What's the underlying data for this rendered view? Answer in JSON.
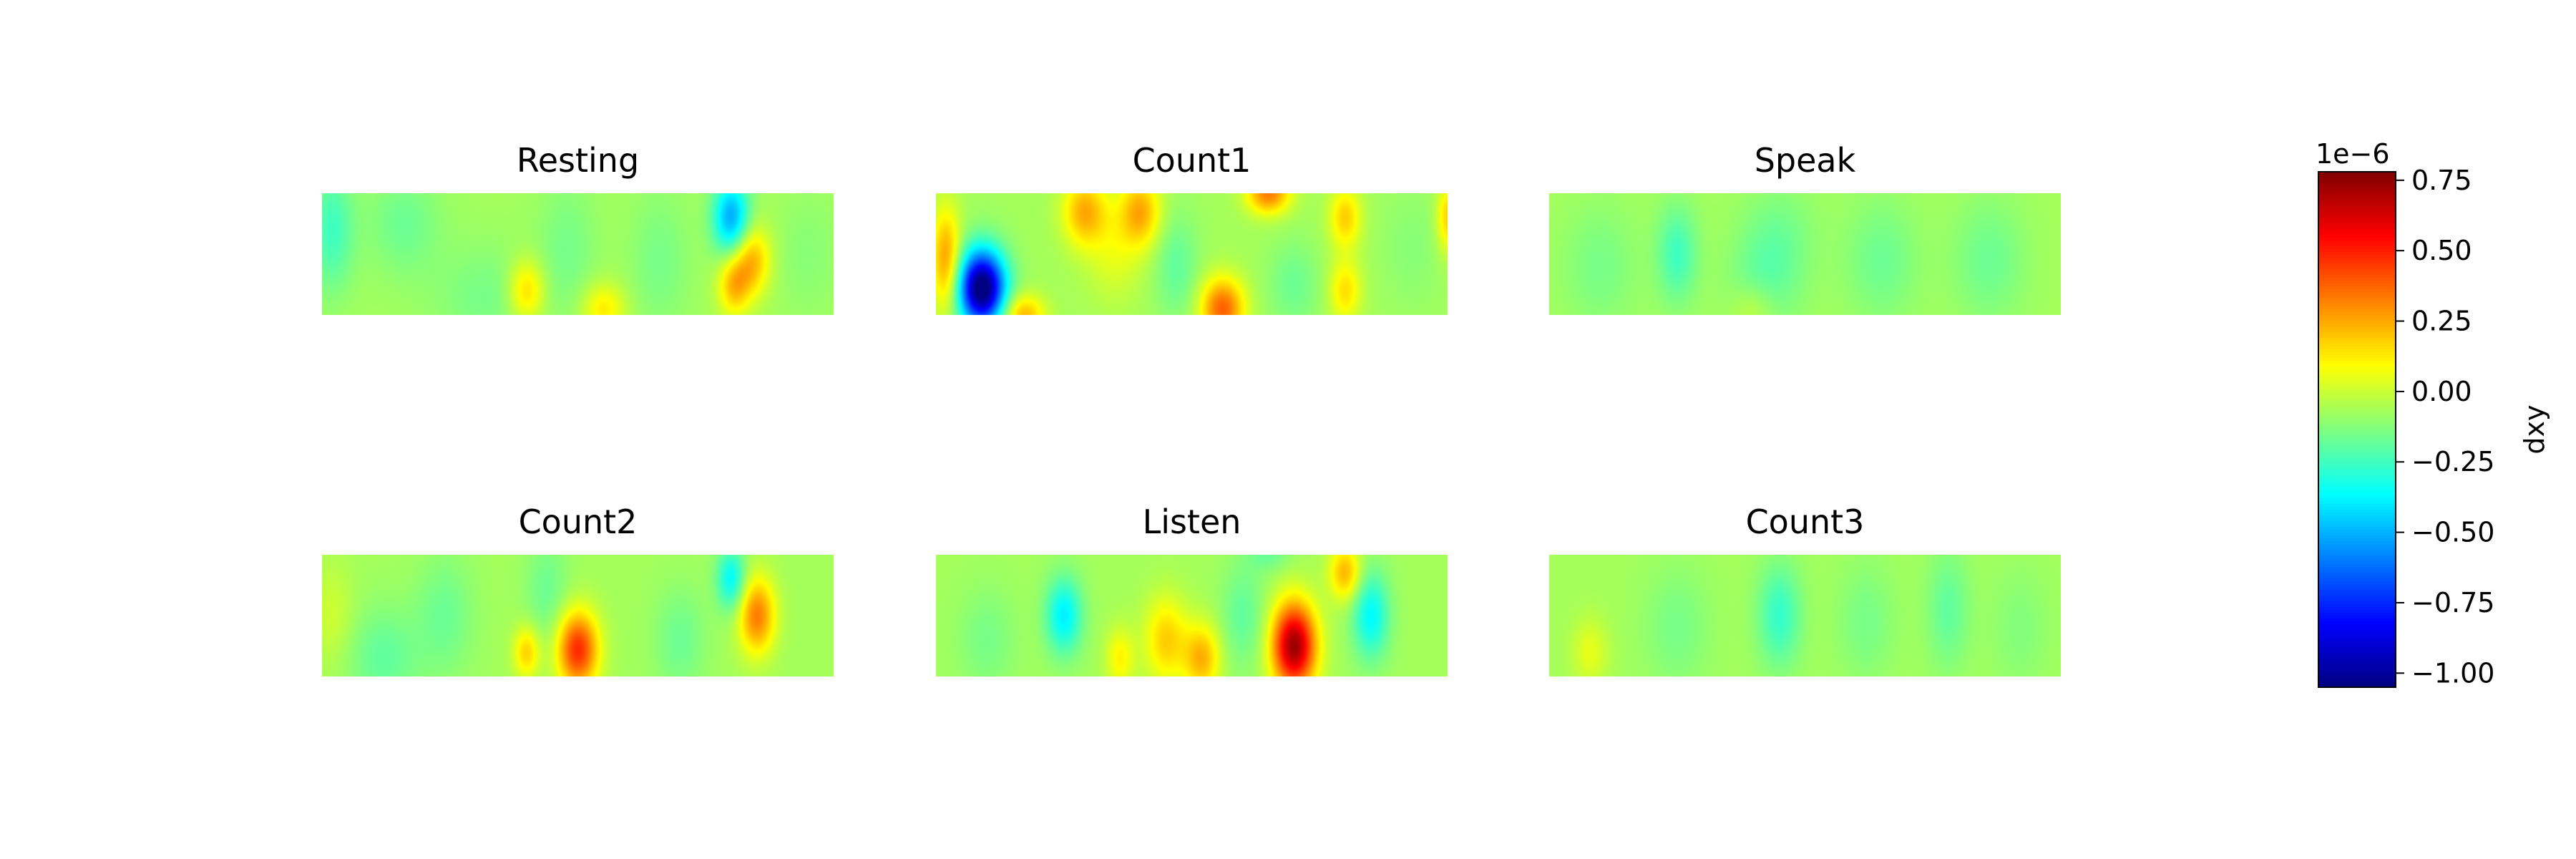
{
  "chart_data": {
    "type": "heatmap",
    "panels": [
      {
        "title": "Resting",
        "blobs": [
          {
            "x": 0.02,
            "y": 0.3,
            "sx": 0.03,
            "sy": 0.35,
            "v": -0.18
          },
          {
            "x": 0.16,
            "y": 0.25,
            "sx": 0.05,
            "sy": 0.3,
            "v": -0.1
          },
          {
            "x": 0.32,
            "y": 0.85,
            "sx": 0.07,
            "sy": 0.3,
            "v": -0.08
          },
          {
            "x": 0.4,
            "y": 0.8,
            "sx": 0.025,
            "sy": 0.18,
            "v": 0.25
          },
          {
            "x": 0.55,
            "y": 0.95,
            "sx": 0.03,
            "sy": 0.15,
            "v": 0.2
          },
          {
            "x": 0.48,
            "y": 0.45,
            "sx": 0.04,
            "sy": 0.4,
            "v": -0.08
          },
          {
            "x": 0.66,
            "y": 0.55,
            "sx": 0.04,
            "sy": 0.4,
            "v": -0.08
          },
          {
            "x": 0.8,
            "y": 0.2,
            "sx": 0.025,
            "sy": 0.22,
            "v": -0.45
          },
          {
            "x": 0.84,
            "y": 0.55,
            "sx": 0.025,
            "sy": 0.2,
            "v": 0.3
          },
          {
            "x": 0.805,
            "y": 0.75,
            "sx": 0.022,
            "sy": 0.18,
            "v": 0.28
          },
          {
            "x": 0.95,
            "y": 0.5,
            "sx": 0.04,
            "sy": 0.35,
            "v": -0.05
          }
        ]
      },
      {
        "title": "Count1",
        "blobs": [
          {
            "x": 0.09,
            "y": 0.78,
            "sx": 0.032,
            "sy": 0.22,
            "v": -1.05
          },
          {
            "x": 0.02,
            "y": 0.55,
            "sx": 0.02,
            "sy": 0.3,
            "v": 0.35
          },
          {
            "x": 0.17,
            "y": 1.0,
            "sx": 0.03,
            "sy": 0.12,
            "v": 0.3
          },
          {
            "x": 0.29,
            "y": 0.15,
            "sx": 0.03,
            "sy": 0.2,
            "v": 0.3
          },
          {
            "x": 0.4,
            "y": 0.15,
            "sx": 0.028,
            "sy": 0.2,
            "v": 0.3
          },
          {
            "x": 0.35,
            "y": 0.45,
            "sx": 0.04,
            "sy": 0.3,
            "v": 0.12
          },
          {
            "x": 0.47,
            "y": 0.6,
            "sx": 0.03,
            "sy": 0.3,
            "v": -0.12
          },
          {
            "x": 0.56,
            "y": 0.95,
            "sx": 0.03,
            "sy": 0.18,
            "v": 0.45
          },
          {
            "x": 0.65,
            "y": 0.0,
            "sx": 0.03,
            "sy": 0.12,
            "v": 0.4
          },
          {
            "x": 0.7,
            "y": 0.75,
            "sx": 0.035,
            "sy": 0.25,
            "v": -0.1
          },
          {
            "x": 0.8,
            "y": 0.2,
            "sx": 0.022,
            "sy": 0.18,
            "v": 0.25
          },
          {
            "x": 0.8,
            "y": 0.8,
            "sx": 0.022,
            "sy": 0.18,
            "v": 0.22
          },
          {
            "x": 0.93,
            "y": 0.45,
            "sx": 0.04,
            "sy": 0.35,
            "v": -0.05
          },
          {
            "x": 1.0,
            "y": 0.2,
            "sx": 0.015,
            "sy": 0.2,
            "v": 0.25
          }
        ]
      },
      {
        "title": "Speak",
        "blobs": [
          {
            "x": 0.25,
            "y": 0.5,
            "sx": 0.028,
            "sy": 0.28,
            "v": -0.18
          },
          {
            "x": 0.1,
            "y": 0.6,
            "sx": 0.05,
            "sy": 0.35,
            "v": -0.08
          },
          {
            "x": 0.42,
            "y": 0.75,
            "sx": 0.05,
            "sy": 0.3,
            "v": -0.1
          },
          {
            "x": 0.45,
            "y": 0.35,
            "sx": 0.05,
            "sy": 0.3,
            "v": -0.08
          },
          {
            "x": 0.4,
            "y": 0.95,
            "sx": 0.03,
            "sy": 0.15,
            "v": 0.1
          },
          {
            "x": 0.65,
            "y": 0.55,
            "sx": 0.05,
            "sy": 0.35,
            "v": -0.1
          },
          {
            "x": 0.86,
            "y": 0.55,
            "sx": 0.05,
            "sy": 0.35,
            "v": -0.1
          }
        ]
      },
      {
        "title": "Count2",
        "blobs": [
          {
            "x": 0.5,
            "y": 0.78,
            "sx": 0.028,
            "sy": 0.22,
            "v": 0.55
          },
          {
            "x": 0.4,
            "y": 0.8,
            "sx": 0.018,
            "sy": 0.15,
            "v": 0.25
          },
          {
            "x": 0.85,
            "y": 0.5,
            "sx": 0.025,
            "sy": 0.22,
            "v": 0.4
          },
          {
            "x": 0.8,
            "y": 0.2,
            "sx": 0.02,
            "sy": 0.18,
            "v": -0.3
          },
          {
            "x": 0.12,
            "y": 0.85,
            "sx": 0.05,
            "sy": 0.3,
            "v": -0.12
          },
          {
            "x": 0.24,
            "y": 0.5,
            "sx": 0.04,
            "sy": 0.35,
            "v": -0.1
          },
          {
            "x": 0.44,
            "y": 0.3,
            "sx": 0.03,
            "sy": 0.3,
            "v": -0.1
          },
          {
            "x": 0.7,
            "y": 0.7,
            "sx": 0.035,
            "sy": 0.3,
            "v": -0.1
          },
          {
            "x": 0.02,
            "y": 0.5,
            "sx": 0.03,
            "sy": 0.3,
            "v": 0.08
          }
        ]
      },
      {
        "title": "Listen",
        "blobs": [
          {
            "x": 0.7,
            "y": 0.75,
            "sx": 0.03,
            "sy": 0.25,
            "v": 0.8
          },
          {
            "x": 0.25,
            "y": 0.5,
            "sx": 0.025,
            "sy": 0.22,
            "v": -0.32
          },
          {
            "x": 0.85,
            "y": 0.5,
            "sx": 0.025,
            "sy": 0.25,
            "v": -0.3
          },
          {
            "x": 0.8,
            "y": 0.15,
            "sx": 0.022,
            "sy": 0.16,
            "v": 0.3
          },
          {
            "x": 0.45,
            "y": 0.7,
            "sx": 0.03,
            "sy": 0.25,
            "v": 0.25
          },
          {
            "x": 0.52,
            "y": 0.85,
            "sx": 0.025,
            "sy": 0.2,
            "v": 0.3
          },
          {
            "x": 0.36,
            "y": 0.85,
            "sx": 0.02,
            "sy": 0.18,
            "v": 0.18
          },
          {
            "x": 0.6,
            "y": 0.5,
            "sx": 0.03,
            "sy": 0.3,
            "v": -0.12
          },
          {
            "x": 0.1,
            "y": 0.7,
            "sx": 0.04,
            "sy": 0.3,
            "v": -0.08
          },
          {
            "x": 0.65,
            "y": 0.0,
            "sx": 0.03,
            "sy": 0.1,
            "v": -0.1
          }
        ]
      },
      {
        "title": "Count3",
        "blobs": [
          {
            "x": 0.45,
            "y": 0.5,
            "sx": 0.03,
            "sy": 0.3,
            "v": -0.2
          },
          {
            "x": 0.08,
            "y": 0.8,
            "sx": 0.025,
            "sy": 0.2,
            "v": 0.12
          },
          {
            "x": 0.25,
            "y": 0.6,
            "sx": 0.045,
            "sy": 0.35,
            "v": -0.08
          },
          {
            "x": 0.62,
            "y": 0.55,
            "sx": 0.04,
            "sy": 0.35,
            "v": -0.08
          },
          {
            "x": 0.78,
            "y": 0.45,
            "sx": 0.03,
            "sy": 0.35,
            "v": -0.12
          },
          {
            "x": 0.92,
            "y": 0.6,
            "sx": 0.04,
            "sy": 0.35,
            "v": -0.06
          }
        ]
      }
    ],
    "base_value": -0.07,
    "colormap": "jet",
    "colorbar": {
      "label": "dxy",
      "offset_text": "1e−6",
      "vmin": -1.05,
      "vmax": 0.78,
      "ticks": [
        0.75,
        0.5,
        0.25,
        0.0,
        -0.25,
        -0.5,
        -0.75,
        -1.0
      ],
      "tick_labels": [
        "0.75",
        "0.50",
        "0.25",
        "0.00",
        "−0.25",
        "−0.50",
        "−0.75",
        "−1.00"
      ]
    }
  }
}
